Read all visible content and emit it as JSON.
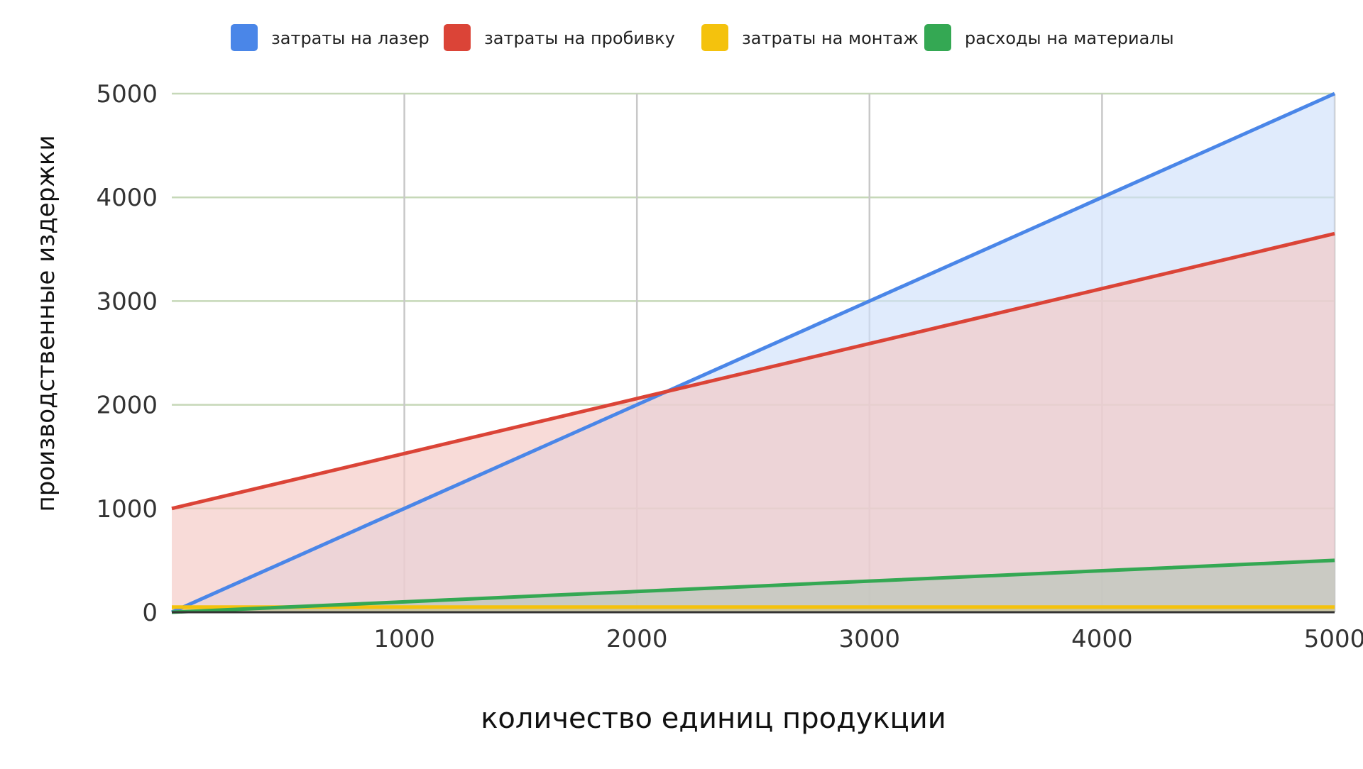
{
  "chart_data": {
    "type": "area",
    "title": "",
    "xlabel": "количество единиц продукции",
    "ylabel": "производственные издержки",
    "xlim": [
      0,
      5000
    ],
    "ylim": [
      0,
      5000
    ],
    "x_ticks": [
      1000,
      2000,
      3000,
      4000,
      5000
    ],
    "y_ticks": [
      0,
      1000,
      2000,
      3000,
      4000,
      5000
    ],
    "grid": true,
    "legend_position": "top",
    "x": [
      0,
      1000,
      2000,
      3000,
      4000,
      5000
    ],
    "series": [
      {
        "name": "затраты на лазер",
        "color": "#4a86e8",
        "fill": "#cfe0fb",
        "values": [
          0,
          1000,
          2000,
          3000,
          4000,
          5000
        ]
      },
      {
        "name": "затраты на пробивку",
        "color": "#db4437",
        "fill": "#f4c7c3",
        "values": [
          1000,
          1530,
          2060,
          2590,
          3120,
          3650
        ]
      },
      {
        "name": "затраты на монтаж",
        "color": "#f4c20d",
        "fill": "#f4c20d",
        "values": [
          50,
          50,
          50,
          50,
          50,
          50
        ]
      },
      {
        "name": "расходы на материалы",
        "color": "#34a853",
        "fill": "#b7c5b9",
        "values": [
          0,
          100,
          200,
          300,
          400,
          500
        ]
      }
    ]
  }
}
